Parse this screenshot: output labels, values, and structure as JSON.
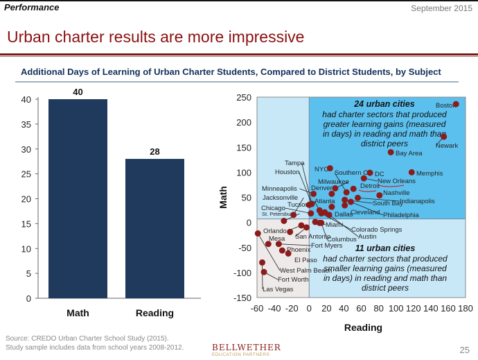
{
  "header": {
    "section": "Performance",
    "date": "September 2015",
    "title": "Urban charter results are more impressive"
  },
  "subtitle": "Additional Days of Learning of Urban Charter Students, Compared to District Students, by Subject",
  "footer": {
    "source_line1": "Source: CREDO Urban Charter School Study (2015).",
    "source_line2": "Study sample includes data from school years 2008-2012.",
    "logo_line1": "BELLWETHER",
    "logo_line2": "EDUCATION PARTNERS",
    "page_number": "25"
  },
  "colors": {
    "title": "#8a1010",
    "bar": "#1f3a5c",
    "dot": "#8b1c1c",
    "quadrant_positive": "#5cc0ee",
    "quadrant_mixed": "#c8e8f8",
    "quadrant_negative": "#efeaea"
  },
  "chart_data": [
    {
      "type": "bar",
      "categories": [
        "Math",
        "Reading"
      ],
      "values": [
        40,
        28
      ],
      "data_labels": [
        "40",
        "28"
      ],
      "ylim": [
        0,
        40
      ],
      "yticks": [
        "0",
        "5",
        "10",
        "15",
        "20",
        "25",
        "30",
        "35",
        "40"
      ],
      "grid": false
    },
    {
      "type": "scatter",
      "xlabel": "Reading",
      "ylabel": "Math",
      "xlim": [
        -60,
        180
      ],
      "ylim": [
        -150,
        250
      ],
      "xticks": [
        "-60",
        "-40",
        "-20",
        "0",
        "20",
        "40",
        "60",
        "80",
        "100",
        "120",
        "140",
        "160",
        "180"
      ],
      "yticks": [
        "-150",
        "-100",
        "-50",
        "0",
        "50",
        "100",
        "150",
        "200",
        "250"
      ],
      "grid": false,
      "annotations": [
        {
          "title": "24 urban cities",
          "text": [
            "had charter sectors that produced",
            "greater learning gains (measured",
            "in days) in reading and math than",
            "district peers"
          ]
        },
        {
          "title": "11 urban cities",
          "text": [
            "had charter sectors that produced",
            "smaller learning gains (measured",
            "in days) in reading and math than",
            "district peers"
          ]
        }
      ],
      "points": [
        {
          "label": "Boston",
          "x": 169,
          "y": 236
        },
        {
          "label": "Newark",
          "x": 155,
          "y": 171
        },
        {
          "label": "Bay Area",
          "x": 94,
          "y": 140
        },
        {
          "label": "NYC",
          "x": 24,
          "y": 108
        },
        {
          "label": "DC",
          "x": 70,
          "y": 99
        },
        {
          "label": "Memphis",
          "x": 118,
          "y": 100
        },
        {
          "label": "New Orleans",
          "x": 63,
          "y": 88
        },
        {
          "label": "Detroit",
          "x": 51,
          "y": 67
        },
        {
          "label": "Milwaukee",
          "x": 30,
          "y": 68
        },
        {
          "label": "Southern CA",
          "x": 43,
          "y": 60
        },
        {
          "label": "Nashville",
          "x": 81,
          "y": 54
        },
        {
          "label": "Minneapolis",
          "x": 5,
          "y": 57
        },
        {
          "label": "Denver",
          "x": 26,
          "y": 57
        },
        {
          "label": "Indianapolis",
          "x": 56,
          "y": 49
        },
        {
          "label": "South Bay",
          "x": 41,
          "y": 45
        },
        {
          "label": "Philadelphia",
          "x": 48,
          "y": 41
        },
        {
          "label": "Cleveland",
          "x": 41,
          "y": 34
        },
        {
          "label": "Tucson",
          "x": 0,
          "y": 35
        },
        {
          "label": "Houston",
          "x": 3,
          "y": 37
        },
        {
          "label": "Tampa",
          "x": 3,
          "y": 37
        },
        {
          "label": "Dallas",
          "x": 26,
          "y": 31
        },
        {
          "label": "Chicago",
          "x": 2,
          "y": 18
        },
        {
          "label": "Atlanta",
          "x": 12,
          "y": 24
        },
        {
          "label": "Colorado Springs",
          "x": 14,
          "y": 18
        },
        {
          "label": "",
          "x": 18,
          "y": 20
        },
        {
          "label": "Austin",
          "x": 23,
          "y": 15
        },
        {
          "label": "Jacksonville",
          "x": -18,
          "y": 15
        },
        {
          "label": "St. Petersburg",
          "x": -29,
          "y": 3
        },
        {
          "label": "Miami",
          "x": 7,
          "y": 1
        },
        {
          "label": "",
          "x": 12,
          "y": -1
        },
        {
          "label": "Columbus",
          "x": 14,
          "y": -1
        },
        {
          "label": "Orlando",
          "x": -9,
          "y": -6
        },
        {
          "label": "San Antonio",
          "x": -3,
          "y": -10
        },
        {
          "label": "",
          "x": -22,
          "y": -19
        },
        {
          "label": "West Palm Beach",
          "x": -59,
          "y": -22
        },
        {
          "label": "Mesa",
          "x": -47,
          "y": -43
        },
        {
          "label": "Fort Myers",
          "x": -35,
          "y": -43
        },
        {
          "label": "Phoenix",
          "x": -31,
          "y": -56
        },
        {
          "label": "El Paso",
          "x": -24,
          "y": -62
        },
        {
          "label": "Las Vegas",
          "x": -54,
          "y": -80
        },
        {
          "label": "Fort Worth",
          "x": -52,
          "y": -99
        }
      ]
    }
  ]
}
